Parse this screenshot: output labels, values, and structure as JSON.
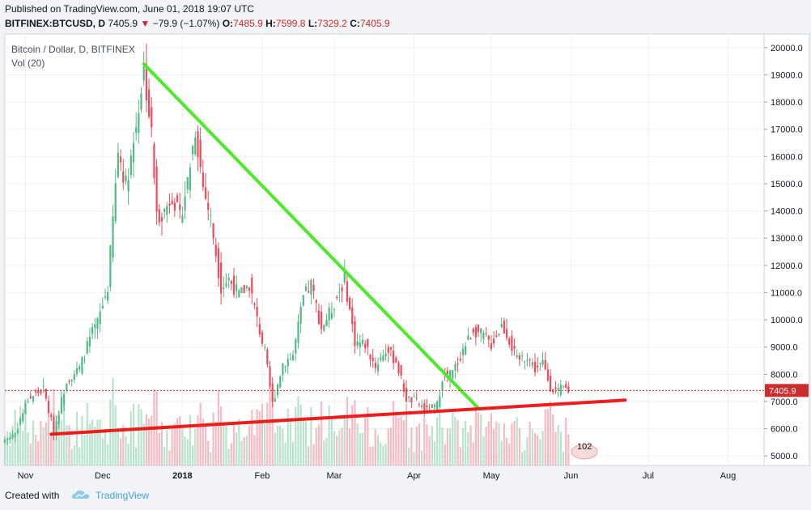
{
  "header": {
    "published": "Published on TradingView.com, June 01, 2018 19:07 UTC",
    "symbol": "BITFINEX:BTCUSD, D",
    "last": "7405.9",
    "change": "−79.9 (−1.07%)",
    "o_label": "O:",
    "o_value": "7485.9",
    "h_label": "H:",
    "h_value": "7599.8",
    "l_label": "L:",
    "l_value": "7329.2",
    "c_label": "C:",
    "c_value": "7405.9"
  },
  "legend": {
    "title": "Bitcoin / Dollar, D, BITFINEX",
    "volume": "Vol (20)"
  },
  "footer": {
    "created_with": "Created with",
    "brand": "TradingView"
  },
  "colors": {
    "up": "#53b987",
    "down": "#eb4d5c",
    "trendline_down": "#4cea2a",
    "trendline_support": "#ee1c1c",
    "last_price": "#ce2d2d"
  },
  "chart_data": {
    "type": "candlestick",
    "symbol": "BTCUSD",
    "exchange": "BITFINEX",
    "interval": "D",
    "ylim": [
      4650,
      20500
    ],
    "yticks": [
      5000,
      6000,
      7000,
      8000,
      9000,
      10000,
      11000,
      12000,
      13000,
      14000,
      15000,
      16000,
      17000,
      18000,
      19000,
      20000
    ],
    "ytick_labels": [
      "5000.0",
      "6000.0",
      "7000.0",
      "8000.0",
      "9000.0",
      "10000.0",
      "11000.0",
      "12000.0",
      "13000.0",
      "14000.0",
      "15000.0",
      "16000.0",
      "17000.0",
      "18000.0",
      "19000.0",
      "20000.0"
    ],
    "xlim": [
      "2017-10-24",
      "2018-08-15"
    ],
    "xticks": [
      {
        "date": "2017-11-01",
        "label": "Nov"
      },
      {
        "date": "2017-12-01",
        "label": "Dec"
      },
      {
        "date": "2018-01-01",
        "label": "2018"
      },
      {
        "date": "2018-02-01",
        "label": "Feb"
      },
      {
        "date": "2018-03-01",
        "label": "Mar"
      },
      {
        "date": "2018-04-01",
        "label": "Apr"
      },
      {
        "date": "2018-05-01",
        "label": "May"
      },
      {
        "date": "2018-06-01",
        "label": "Jun"
      },
      {
        "date": "2018-07-01",
        "label": "Jul"
      },
      {
        "date": "2018-08-01",
        "label": "Aug"
      }
    ],
    "close_path": [
      [
        "2017-10-24",
        5600
      ],
      [
        "2017-10-28",
        5850
      ],
      [
        "2017-11-02",
        7100
      ],
      [
        "2017-11-08",
        7450
      ],
      [
        "2017-11-12",
        5900
      ],
      [
        "2017-11-17",
        7800
      ],
      [
        "2017-11-22",
        8200
      ],
      [
        "2017-11-26",
        9300
      ],
      [
        "2017-11-29",
        9900
      ],
      [
        "2017-12-03",
        11200
      ],
      [
        "2017-12-07",
        16200
      ],
      [
        "2017-12-10",
        15000
      ],
      [
        "2017-12-13",
        16500
      ],
      [
        "2017-12-17",
        19200
      ],
      [
        "2017-12-20",
        16800
      ],
      [
        "2017-12-22",
        13800
      ],
      [
        "2017-12-25",
        14000
      ],
      [
        "2017-12-28",
        14600
      ],
      [
        "2017-12-31",
        13700
      ],
      [
        "2018-01-03",
        15100
      ],
      [
        "2018-01-06",
        17000
      ],
      [
        "2018-01-09",
        14900
      ],
      [
        "2018-01-12",
        13700
      ],
      [
        "2018-01-16",
        11200
      ],
      [
        "2018-01-19",
        11500
      ],
      [
        "2018-01-23",
        10900
      ],
      [
        "2018-01-27",
        11300
      ],
      [
        "2018-01-30",
        10000
      ],
      [
        "2018-02-02",
        8800
      ],
      [
        "2018-02-05",
        6900
      ],
      [
        "2018-02-09",
        8400
      ],
      [
        "2018-02-13",
        8700
      ],
      [
        "2018-02-17",
        10800
      ],
      [
        "2018-02-20",
        11300
      ],
      [
        "2018-02-24",
        9700
      ],
      [
        "2018-02-28",
        10400
      ],
      [
        "2018-03-05",
        11500
      ],
      [
        "2018-03-09",
        9200
      ],
      [
        "2018-03-13",
        9100
      ],
      [
        "2018-03-17",
        8300
      ],
      [
        "2018-03-21",
        8900
      ],
      [
        "2018-03-25",
        8500
      ],
      [
        "2018-03-29",
        7100
      ],
      [
        "2018-04-02",
        7000
      ],
      [
        "2018-04-06",
        6650
      ],
      [
        "2018-04-10",
        6850
      ],
      [
        "2018-04-12",
        7900
      ],
      [
        "2018-04-16",
        8050
      ],
      [
        "2018-04-20",
        8900
      ],
      [
        "2018-04-24",
        9650
      ],
      [
        "2018-04-28",
        9400
      ],
      [
        "2018-05-01",
        9100
      ],
      [
        "2018-05-05",
        9800
      ],
      [
        "2018-05-07",
        9500
      ],
      [
        "2018-05-11",
        8500
      ],
      [
        "2018-05-15",
        8700
      ],
      [
        "2018-05-18",
        8200
      ],
      [
        "2018-05-21",
        8400
      ],
      [
        "2018-05-24",
        7550
      ],
      [
        "2018-05-27",
        7350
      ],
      [
        "2018-05-29",
        7500
      ],
      [
        "2018-05-31",
        7405.9
      ]
    ],
    "last_price": 7405.9,
    "last_price_label": "7405.9",
    "volume_study": "Vol (20)",
    "volume_badge": "102",
    "trendlines": [
      {
        "name": "descending resistance",
        "color": "#4cea2a",
        "from": [
          "2017-12-17",
          19400
        ],
        "to": [
          "2018-04-26",
          6750
        ]
      },
      {
        "name": "ascending support",
        "color": "#ee1c1c",
        "from": [
          "2017-11-11",
          5800
        ],
        "to": [
          "2018-06-22",
          7050
        ]
      }
    ],
    "grid": true,
    "legend_position": "top-left"
  }
}
